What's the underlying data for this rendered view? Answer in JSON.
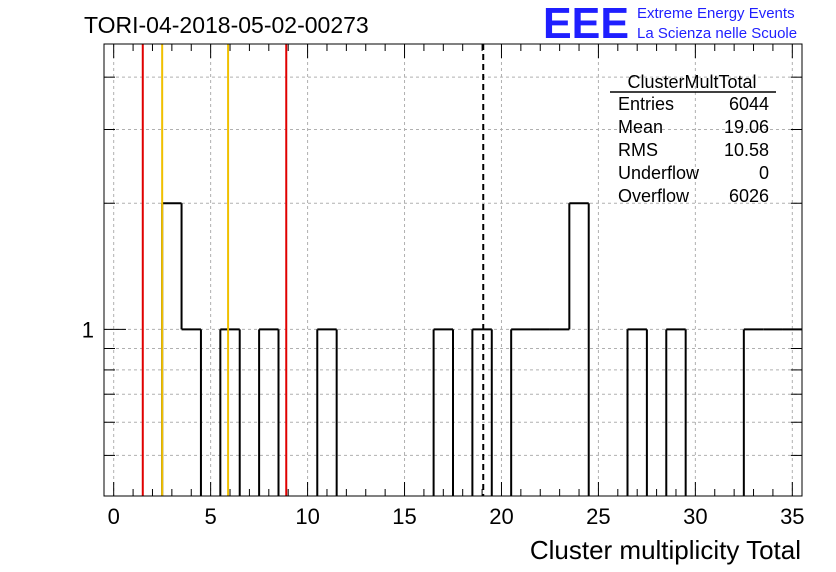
{
  "run_title": "TORI-04-2018-05-02-00273",
  "logo": {
    "letters": "EEE",
    "line1": "Extreme Energy Events",
    "line2": "La Scienza nelle Scuole",
    "color": "#1f1fff"
  },
  "stats": {
    "name": "ClusterMultTotal",
    "rows": [
      {
        "label": "Entries",
        "value": "6044"
      },
      {
        "label": "Mean",
        "value": "19.06"
      },
      {
        "label": "RMS",
        "value": "10.58"
      },
      {
        "label": "Underflow",
        "value": "0"
      },
      {
        "label": "Overflow",
        "value": "6026"
      }
    ]
  },
  "chart_data": {
    "type": "histogram",
    "title": "",
    "xlabel": "Cluster multiplicity Total",
    "ylabel": "",
    "xlim": [
      -0.5,
      35.5
    ],
    "ylim": [
      0.4,
      4.8
    ],
    "yscale": "log",
    "grid": true,
    "x_ticks": [
      0,
      5,
      10,
      15,
      20,
      25,
      30,
      35
    ],
    "y_ticks": [
      1
    ],
    "bin_width": 1,
    "bins": [
      {
        "x": 0,
        "count": 0
      },
      {
        "x": 1,
        "count": 0
      },
      {
        "x": 2,
        "count": 0
      },
      {
        "x": 3,
        "count": 2
      },
      {
        "x": 4,
        "count": 1
      },
      {
        "x": 5,
        "count": 0
      },
      {
        "x": 6,
        "count": 1
      },
      {
        "x": 7,
        "count": 0
      },
      {
        "x": 8,
        "count": 1
      },
      {
        "x": 9,
        "count": 0
      },
      {
        "x": 10,
        "count": 0
      },
      {
        "x": 11,
        "count": 1
      },
      {
        "x": 12,
        "count": 0
      },
      {
        "x": 13,
        "count": 0
      },
      {
        "x": 14,
        "count": 0
      },
      {
        "x": 15,
        "count": 0
      },
      {
        "x": 16,
        "count": 0
      },
      {
        "x": 17,
        "count": 1
      },
      {
        "x": 18,
        "count": 0
      },
      {
        "x": 19,
        "count": 1
      },
      {
        "x": 20,
        "count": 0
      },
      {
        "x": 21,
        "count": 1
      },
      {
        "x": 22,
        "count": 1
      },
      {
        "x": 23,
        "count": 1
      },
      {
        "x": 24,
        "count": 2
      },
      {
        "x": 25,
        "count": 0
      },
      {
        "x": 26,
        "count": 0
      },
      {
        "x": 27,
        "count": 1
      },
      {
        "x": 28,
        "count": 0
      },
      {
        "x": 29,
        "count": 1
      },
      {
        "x": 30,
        "count": 0
      },
      {
        "x": 31,
        "count": 0
      },
      {
        "x": 32,
        "count": 0
      },
      {
        "x": 33,
        "count": 1
      },
      {
        "x": 34,
        "count": 1
      },
      {
        "x": 35,
        "count": 1
      }
    ],
    "vertical_lines": [
      {
        "x": 1.5,
        "color": "#e00000",
        "style": "solid"
      },
      {
        "x": 2.5,
        "color": "#f0c000",
        "style": "solid"
      },
      {
        "x": 5.9,
        "color": "#f0c000",
        "style": "solid"
      },
      {
        "x": 8.9,
        "color": "#e00000",
        "style": "solid"
      },
      {
        "x": 19.06,
        "color": "#000000",
        "style": "dashed"
      }
    ]
  }
}
